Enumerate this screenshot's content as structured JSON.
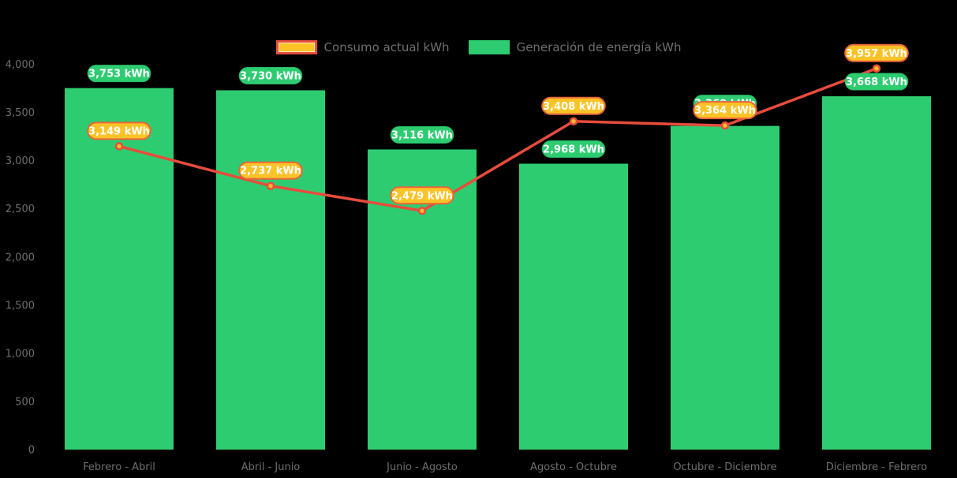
{
  "legend": {
    "items": [
      {
        "label": "Consumo actual kWh",
        "swatch": "consumption"
      },
      {
        "label": "Generación de energía kWh",
        "swatch": "generation"
      }
    ]
  },
  "colors": {
    "background": "#000000",
    "bar_green": "#2ecc71",
    "bar_label_fill": "#2ecc71",
    "bar_label_border": "#29b866",
    "line_red": "#e74c3c",
    "point_fill": "#fdb92a",
    "point_stroke": "#e74c3c",
    "point_label_fill": "#fcc327",
    "point_label_border": "#e8653a",
    "value_label_text": "#ffffff",
    "axis_text": "#6e6e6e"
  },
  "chart_data": {
    "type": "bar",
    "subtype": "bar-line-combo",
    "categories": [
      "Febrero - Abril",
      "Abril - Junio",
      "Junio - Agosto",
      "Agosto - Octubre",
      "Octubre - Diciembre",
      "Diciembre - Febrero"
    ],
    "series": [
      {
        "name": "Generación de energía kWh",
        "type": "bar",
        "values": [
          3753,
          3730,
          3116,
          2968,
          3360,
          3668
        ],
        "labels": [
          "3,753 kWh",
          "3,730 kWh",
          "3,116 kWh",
          "2,968 kWh",
          "3,360 kWh",
          "3,668 kWh"
        ],
        "occluded_label_index": 4
      },
      {
        "name": "Consumo actual kWh",
        "type": "line",
        "values": [
          3149,
          2737,
          2479,
          3408,
          3364,
          3957
        ],
        "labels": [
          "3,149 kWh",
          "2,737 kWh",
          "2,479 kWh",
          "3,408 kWh",
          "3,364 kWh",
          "3,957 kWh"
        ]
      }
    ],
    "unit": "kWh",
    "ylim": [
      0,
      4000
    ],
    "ytick_step": 500,
    "ytick_labels": [
      "0",
      "500",
      "1,000",
      "1,500",
      "2,000",
      "2,500",
      "3,000",
      "3,500",
      "4,000"
    ],
    "grid": false,
    "legend_position": "top-center",
    "title": "",
    "xlabel": "",
    "ylabel": ""
  }
}
